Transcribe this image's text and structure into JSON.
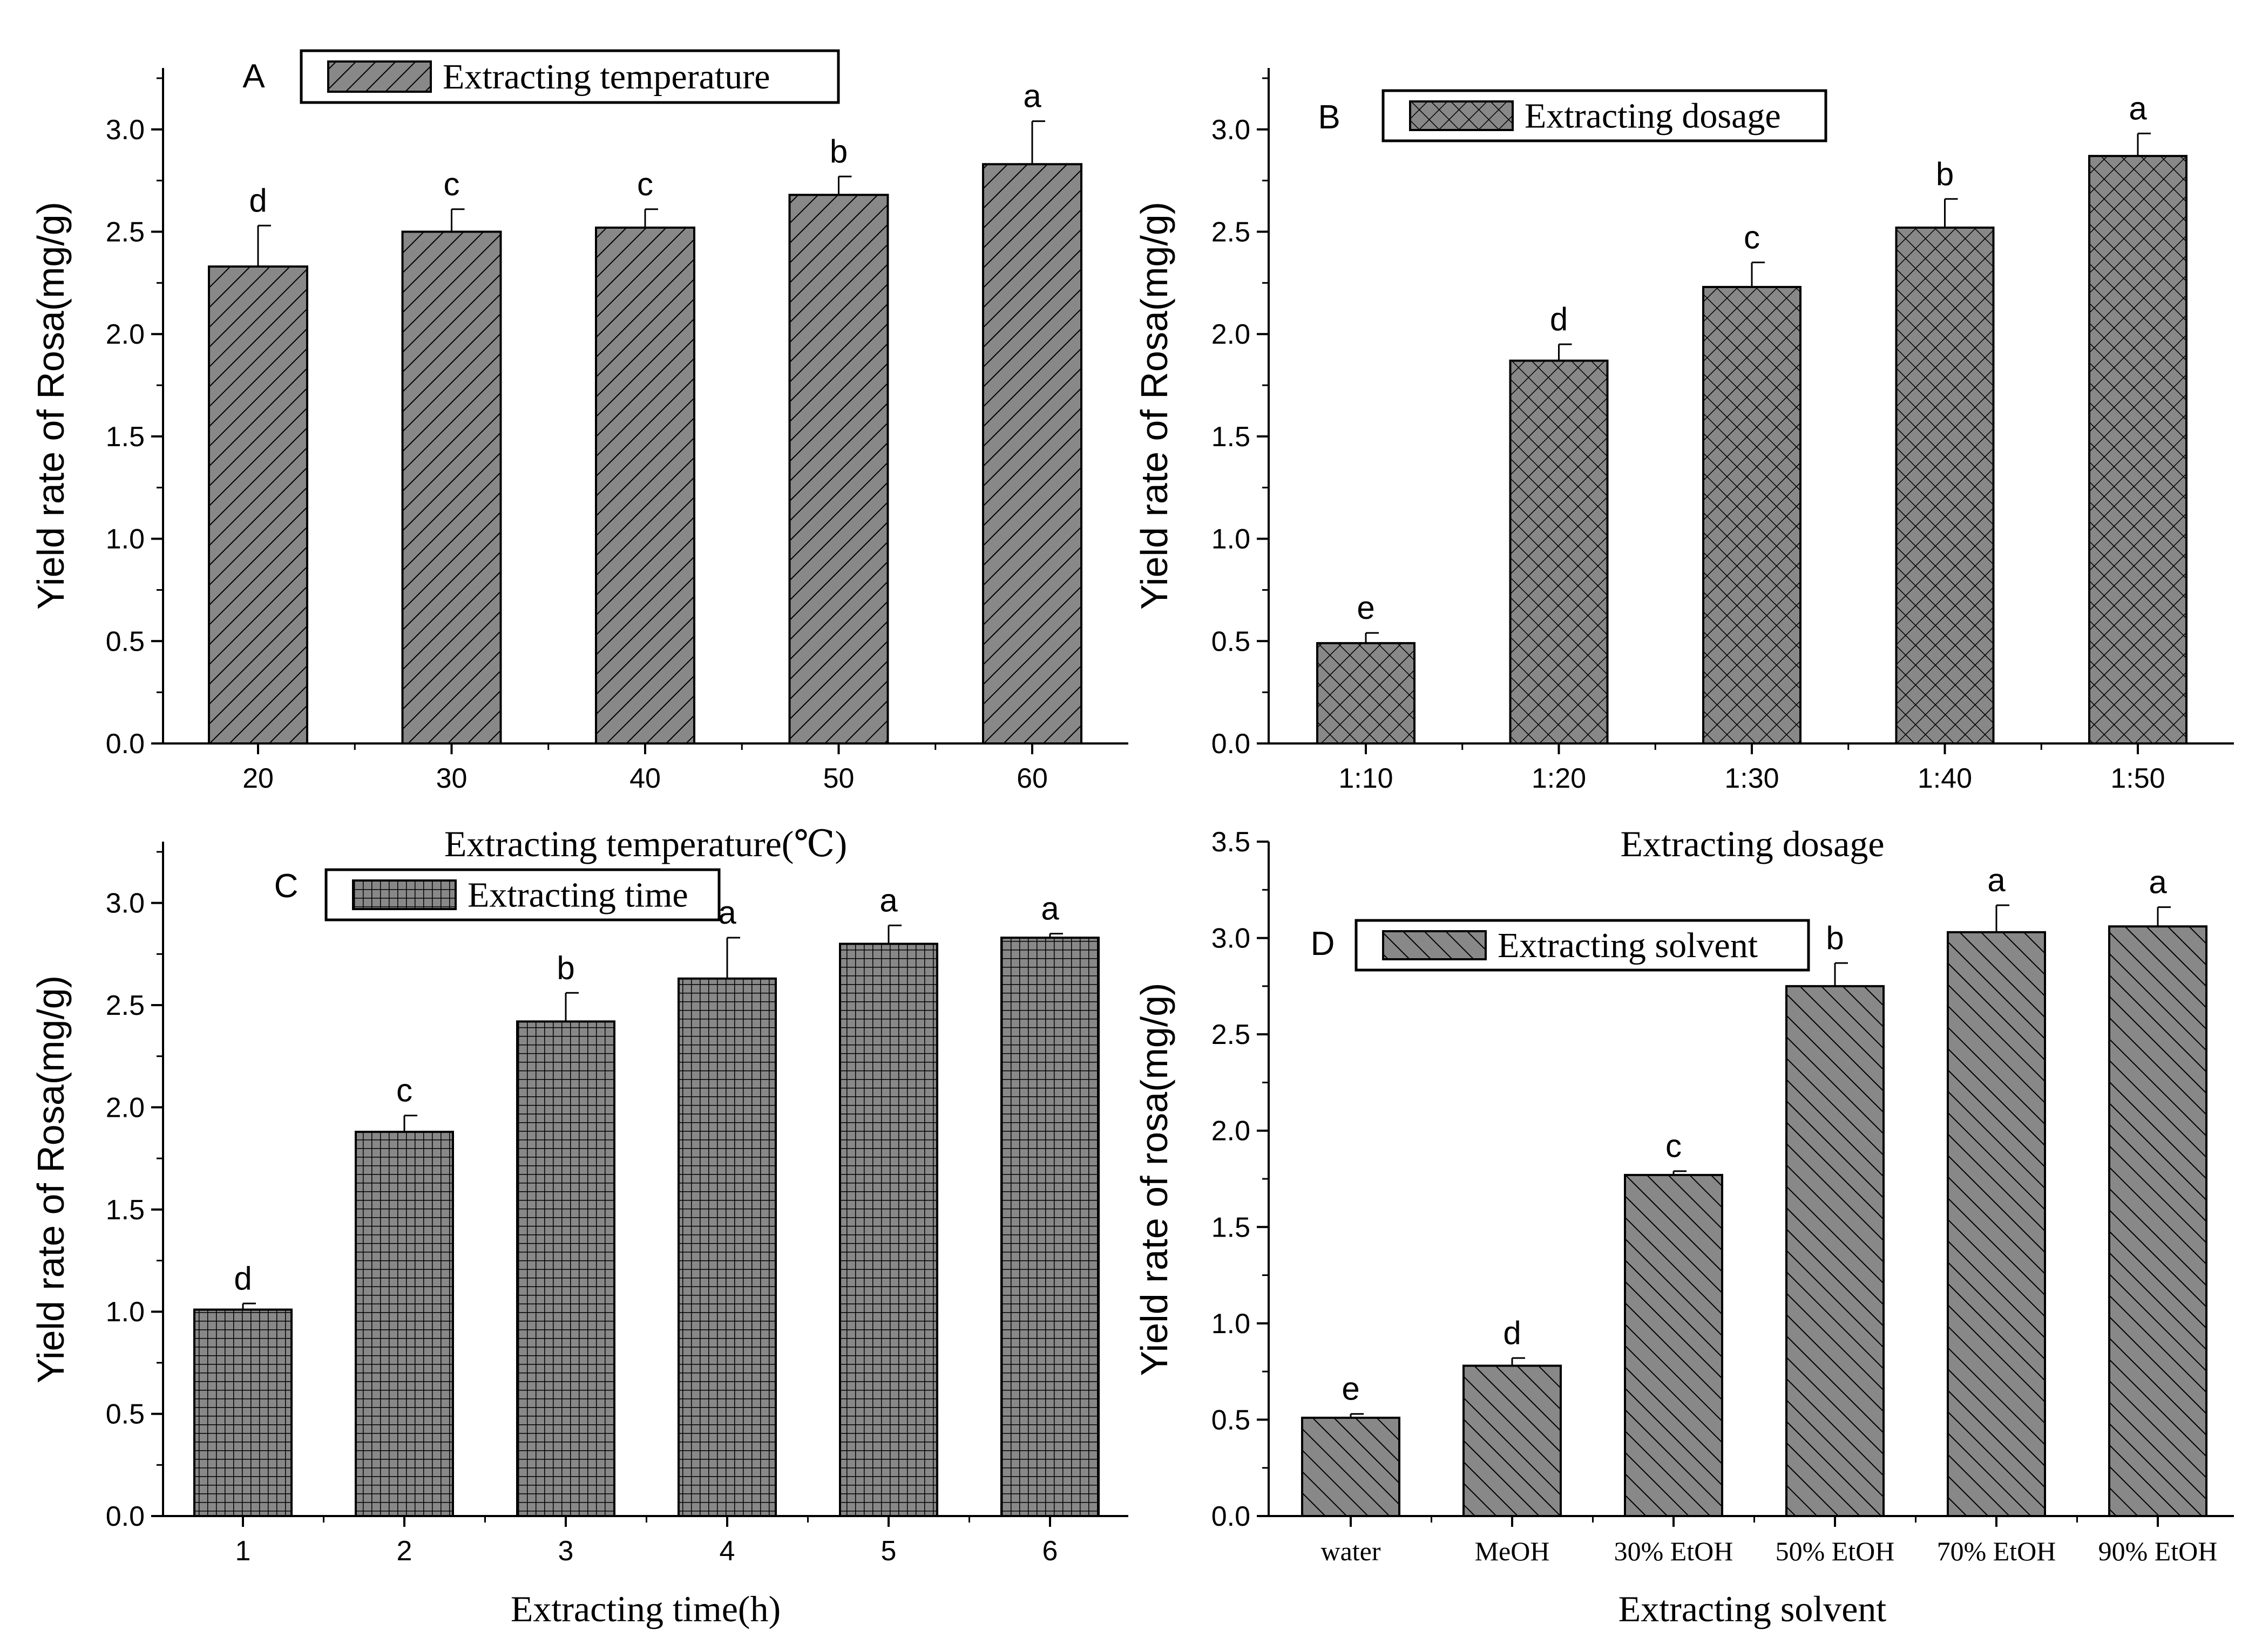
{
  "colors": {
    "bar_fill": "#888888",
    "pattern": "#000000",
    "axis": "#000000",
    "background": "#ffffff"
  },
  "chart_data": [
    {
      "panel": "A",
      "type": "bar",
      "legend": "Extracting temperature",
      "pattern": "back-diagonal",
      "categories": [
        "20",
        "30",
        "40",
        "50",
        "60"
      ],
      "values": [
        2.33,
        2.5,
        2.52,
        2.68,
        2.83
      ],
      "errors": [
        0.2,
        0.11,
        0.09,
        0.09,
        0.21
      ],
      "significance": [
        "d",
        "c",
        "c",
        "b",
        "a"
      ],
      "xlabel": "Extracting temperature(℃)",
      "ylabel": "Yield rate of Rosa(mg/g)",
      "ylim": [
        0,
        3.3
      ],
      "yticks": [
        "0.0",
        "0.5",
        "1.0",
        "1.5",
        "2.0",
        "2.5",
        "3.0"
      ]
    },
    {
      "panel": "B",
      "type": "bar",
      "legend": "Extracting dosage",
      "pattern": "crosshatch-diagonal",
      "categories": [
        "1:10",
        "1:20",
        "1:30",
        "1:40",
        "1:50"
      ],
      "values": [
        0.49,
        1.87,
        2.23,
        2.52,
        2.87
      ],
      "errors": [
        0.05,
        0.08,
        0.12,
        0.14,
        0.11
      ],
      "significance": [
        "e",
        "d",
        "c",
        "b",
        "a"
      ],
      "xlabel": "Extracting dosage",
      "ylabel": "Yield rate of Rosa(mg/g)",
      "ylim": [
        0,
        3.3
      ],
      "yticks": [
        "0.0",
        "0.5",
        "1.0",
        "1.5",
        "2.0",
        "2.5",
        "3.0"
      ]
    },
    {
      "panel": "C",
      "type": "bar",
      "legend": "Extracting time",
      "pattern": "grid",
      "categories": [
        "1",
        "2",
        "3",
        "4",
        "5",
        "6"
      ],
      "values": [
        1.01,
        1.88,
        2.42,
        2.63,
        2.8,
        2.83
      ],
      "errors": [
        0.03,
        0.08,
        0.14,
        0.2,
        0.09,
        0.02
      ],
      "significance": [
        "d",
        "c",
        "b",
        "a",
        "a",
        "a"
      ],
      "xlabel": "Extracting time(h)",
      "ylabel": "Yield rate of Rosa(mg/g)",
      "ylim": [
        0,
        3.3
      ],
      "yticks": [
        "0.0",
        "0.5",
        "1.0",
        "1.5",
        "2.0",
        "2.5",
        "3.0"
      ]
    },
    {
      "panel": "D",
      "type": "bar",
      "legend": "Extracting solvent",
      "pattern": "forward-diagonal",
      "categories": [
        "water",
        "MeOH",
        "30% EtOH",
        "50% EtOH",
        "70% EtOH",
        "90% EtOH"
      ],
      "values": [
        0.51,
        0.78,
        1.77,
        2.75,
        3.03,
        3.06
      ],
      "errors": [
        0.02,
        0.04,
        0.02,
        0.12,
        0.14,
        0.1
      ],
      "significance": [
        "e",
        "d",
        "c",
        "b",
        "a",
        "a"
      ],
      "xlabel": "Extracting solvent",
      "ylabel": "Yield rate of rosa(mg/g)",
      "ylim": [
        0,
        3.5
      ],
      "yticks": [
        "0.0",
        "0.5",
        "1.0",
        "1.5",
        "2.0",
        "2.5",
        "3.0",
        "3.5"
      ]
    }
  ]
}
